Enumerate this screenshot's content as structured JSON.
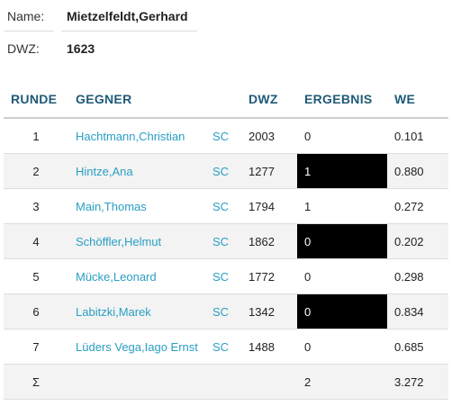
{
  "player": {
    "name_label": "Name:",
    "name_value": "Mietzelfeldt,Gerhard",
    "dwz_label": "DWZ:",
    "dwz_value": "1623"
  },
  "table": {
    "headers": {
      "round": "RUNDE",
      "opponent": "GEGNER",
      "club": "",
      "dwz": "DWZ",
      "result": "ERGEBNIS",
      "we": "WE"
    },
    "rows": [
      {
        "round": "1",
        "opponent": "Hachtmann,Christian",
        "club": "SC",
        "dwz": "2003",
        "result": "0",
        "we": "0.101",
        "black": false
      },
      {
        "round": "2",
        "opponent": "Hintze,Ana",
        "club": "SC",
        "dwz": "1277",
        "result": "1",
        "we": "0.880",
        "black": true
      },
      {
        "round": "3",
        "opponent": "Main,Thomas",
        "club": "SC",
        "dwz": "1794",
        "result": "1",
        "we": "0.272",
        "black": false
      },
      {
        "round": "4",
        "opponent": "Schöffler,Helmut",
        "club": "SC",
        "dwz": "1862",
        "result": "0",
        "we": "0.202",
        "black": true
      },
      {
        "round": "5",
        "opponent": "Mücke,Leonard",
        "club": "SC",
        "dwz": "1772",
        "result": "0",
        "we": "0.298",
        "black": false
      },
      {
        "round": "6",
        "opponent": "Labitzki,Marek",
        "club": "SC",
        "dwz": "1342",
        "result": "0",
        "we": "0.834",
        "black": true
      },
      {
        "round": "7",
        "opponent": "Lüders Vega,Iago Ernst",
        "club": "SC",
        "dwz": "1488",
        "result": "0",
        "we": "0.685",
        "black": false
      }
    ],
    "total": {
      "round": "Σ",
      "result": "2",
      "we": "3.272"
    }
  },
  "colors": {
    "header_text": "#1f5a78",
    "link": "#2a9fc4",
    "row_shade": "#f3f3f3",
    "black_cell": "#000000"
  }
}
